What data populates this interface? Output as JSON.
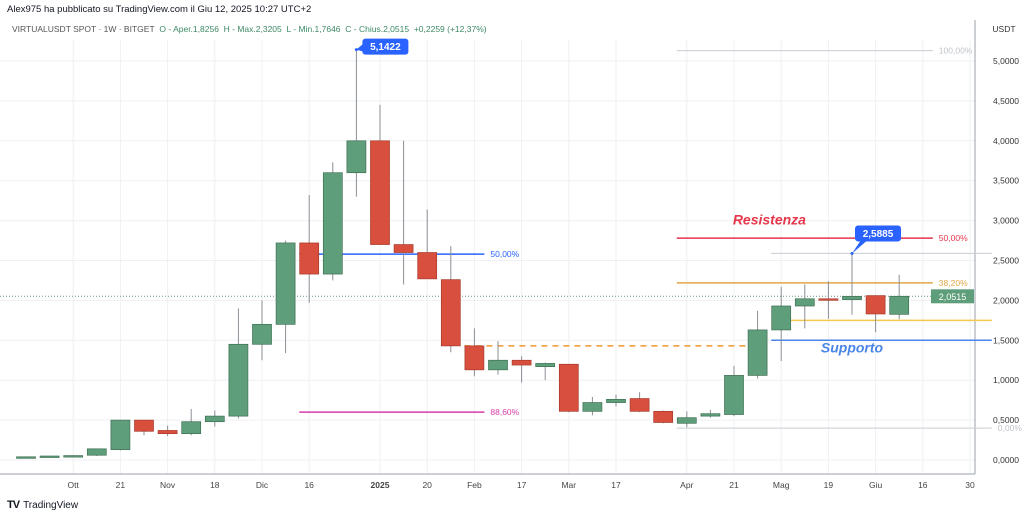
{
  "header": {
    "published": "Alex975 ha pubblicato su TradingView.com il Giu 12, 2025 10:27 UTC+2"
  },
  "legend": {
    "symbol": "VIRTUALUSDT SPOT · 1W · BITGET",
    "open": "O - Aper.1,8256",
    "high": "H - Max.2,3205",
    "low": "L - Min.1,7646",
    "close": "C - Chius.2,0515",
    "change": "+0,2259 (+12,37%)"
  },
  "footer": {
    "brand": "TradingView"
  },
  "colors": {
    "up": "#5f9e7b",
    "down": "#d94f3d",
    "blue": "#2962ff",
    "grid": "#eef0f3"
  },
  "chart_data": {
    "type": "candlestick",
    "currency": "USDT",
    "ylim": [
      -0.2,
      5.5
    ],
    "yticks": [
      {
        "v": 0,
        "label": "0,0000"
      },
      {
        "v": 0.5,
        "label": "0,5000"
      },
      {
        "v": 1,
        "label": "1,0000"
      },
      {
        "v": 1.5,
        "label": "1,5000"
      },
      {
        "v": 2,
        "label": "2,0000"
      },
      {
        "v": 2.5,
        "label": "2,5000"
      },
      {
        "v": 3,
        "label": "3,0000"
      },
      {
        "v": 3.5,
        "label": "3,5000"
      },
      {
        "v": 4,
        "label": "4,0000"
      },
      {
        "v": 4.5,
        "label": "4,5000"
      },
      {
        "v": 5,
        "label": "5,0000"
      }
    ],
    "xticks": [
      {
        "i": 2,
        "label": "Ott"
      },
      {
        "i": 4,
        "label": "21"
      },
      {
        "i": 6,
        "label": "Nov"
      },
      {
        "i": 8,
        "label": "18"
      },
      {
        "i": 10,
        "label": "Dic"
      },
      {
        "i": 12,
        "label": "16"
      },
      {
        "i": 15,
        "label": "2025"
      },
      {
        "i": 17,
        "label": "20"
      },
      {
        "i": 19,
        "label": "Feb"
      },
      {
        "i": 21,
        "label": "17"
      },
      {
        "i": 23,
        "label": "Mar"
      },
      {
        "i": 25,
        "label": "17"
      },
      {
        "i": 28,
        "label": "Apr"
      },
      {
        "i": 30,
        "label": "21"
      },
      {
        "i": 32,
        "label": "Mag"
      },
      {
        "i": 34,
        "label": "19"
      },
      {
        "i": 36,
        "label": "Giu"
      },
      {
        "i": 38,
        "label": "16"
      },
      {
        "i": 40,
        "label": "30"
      }
    ],
    "candles": [
      [
        0.04,
        0.045,
        0.035,
        0.04
      ],
      [
        0.045,
        0.05,
        0.04,
        0.05
      ],
      [
        0.05,
        0.055,
        0.045,
        0.055
      ],
      [
        0.06,
        0.14,
        0.05,
        0.14
      ],
      [
        0.13,
        0.5,
        0.12,
        0.5
      ],
      [
        0.5,
        0.5,
        0.31,
        0.36
      ],
      [
        0.37,
        0.43,
        0.3,
        0.33
      ],
      [
        0.33,
        0.64,
        0.31,
        0.48
      ],
      [
        0.48,
        0.62,
        0.42,
        0.55
      ],
      [
        0.55,
        1.9,
        0.52,
        1.45
      ],
      [
        1.45,
        2.0,
        1.25,
        1.7
      ],
      [
        1.7,
        2.75,
        1.34,
        2.72
      ],
      [
        2.72,
        3.32,
        1.97,
        2.33
      ],
      [
        2.33,
        3.73,
        2.25,
        3.6
      ],
      [
        3.6,
        5.1422,
        3.3,
        4.0
      ],
      [
        4.0,
        4.45,
        2.7,
        2.7
      ],
      [
        2.7,
        4.0,
        2.2,
        2.6
      ],
      [
        2.6,
        3.14,
        2.27,
        2.27
      ],
      [
        2.26,
        2.68,
        1.35,
        1.43
      ],
      [
        1.43,
        1.65,
        1.05,
        1.13
      ],
      [
        1.13,
        1.49,
        1.07,
        1.25
      ],
      [
        1.25,
        1.3,
        0.97,
        1.19
      ],
      [
        1.17,
        1.22,
        1.0,
        1.21
      ],
      [
        1.2,
        1.2,
        0.6,
        0.61
      ],
      [
        0.61,
        0.79,
        0.56,
        0.72
      ],
      [
        0.72,
        0.82,
        0.67,
        0.76
      ],
      [
        0.77,
        0.85,
        0.6,
        0.61
      ],
      [
        0.61,
        0.62,
        0.46,
        0.47
      ],
      [
        0.46,
        0.61,
        0.41,
        0.53
      ],
      [
        0.55,
        0.63,
        0.53,
        0.58
      ],
      [
        0.57,
        1.18,
        0.55,
        1.06
      ],
      [
        1.06,
        1.87,
        1.02,
        1.63
      ],
      [
        1.63,
        2.17,
        1.24,
        1.93
      ],
      [
        1.93,
        2.2,
        1.65,
        2.02
      ],
      [
        2.02,
        2.24,
        1.77,
        2.01
      ],
      [
        2.01,
        2.5885,
        1.82,
        2.05
      ],
      [
        2.06,
        2.06,
        1.6,
        1.83
      ],
      [
        1.8256,
        2.3205,
        1.7646,
        2.0515
      ]
    ],
    "last_price": {
      "value": 2.0515,
      "label": "2,0515"
    },
    "callouts": [
      {
        "i": 14,
        "v": 5.1422,
        "label": "5,1422"
      },
      {
        "i": 35,
        "v": 2.5885,
        "label": "2,5885"
      }
    ],
    "levels": [
      {
        "name": "fib-50-left",
        "v": 2.58,
        "i0": 12,
        "i1": 19,
        "color": "#2962ff",
        "label": "50,00%",
        "dash": false
      },
      {
        "name": "fib-886-left",
        "v": 0.6,
        "i0": 12,
        "i1": 19,
        "color": "#d63caa",
        "label": "88,60%",
        "dash": false
      },
      {
        "name": "dashed-orange",
        "v": 1.43,
        "i0": 19,
        "i1": 31,
        "color": "#f0962e",
        "label": "",
        "dash": true
      },
      {
        "name": "fib-100",
        "v": 5.13,
        "i0": 28,
        "i1": 38,
        "color": "#c8ccd3",
        "label": "100,00%",
        "dash": false
      },
      {
        "name": "resistance",
        "v": 2.78,
        "i0": 28,
        "i1": 38,
        "color": "#e5364a",
        "label": "50,00%",
        "dash": false
      },
      {
        "name": "fib-382",
        "v": 2.22,
        "i0": 28,
        "i1": 38,
        "color": "#e3a646",
        "label": "38,20%",
        "dash": false
      },
      {
        "name": "fib-0",
        "v": 0.4,
        "i0": 28,
        "i1": 40.5,
        "color": "#c8ccd3",
        "label": "0,00%",
        "dash": false
      },
      {
        "name": "top-gray",
        "v": 2.59,
        "i0": 32,
        "i1": 40.5,
        "color": "#c8ccd3",
        "label": "",
        "dash": false
      },
      {
        "name": "yellow-support",
        "v": 1.75,
        "i0": 32,
        "i1": 40.5,
        "color": "#f2c94c",
        "label": "",
        "dash": false
      },
      {
        "name": "support",
        "v": 1.5,
        "i0": 32,
        "i1": 40.5,
        "color": "#4a86e8",
        "label": "",
        "dash": false
      }
    ],
    "annotations": [
      {
        "text": "Resistenza",
        "i": 31.5,
        "v": 2.95,
        "color": "#e5364a"
      },
      {
        "text": "Supporto",
        "i": 35,
        "v": 1.35,
        "color": "#4a86e8"
      }
    ]
  }
}
